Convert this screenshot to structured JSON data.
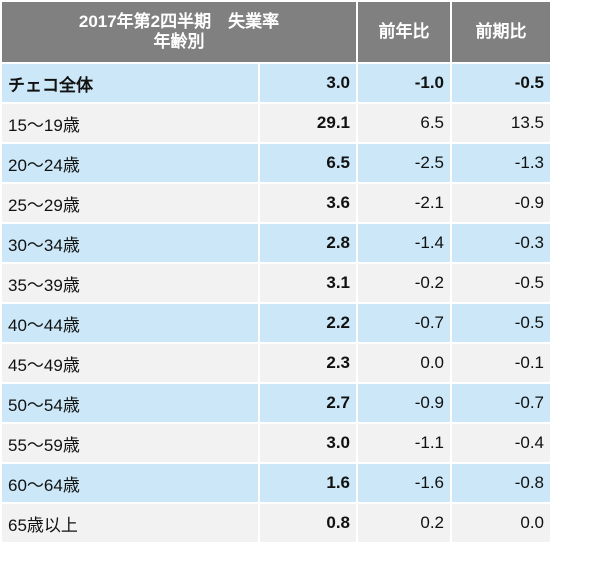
{
  "header": {
    "line1": "2017年第2四半期　失業率",
    "line2": "年齢別",
    "yoy": "前年比",
    "qoq": "前期比"
  },
  "rows": [
    {
      "age": "チェコ全体",
      "rate": "3.0",
      "yoy": "-1.0",
      "qoq": "-0.5"
    },
    {
      "age": "15～19歳",
      "rate": "29.1",
      "yoy": "6.5",
      "qoq": "13.5"
    },
    {
      "age": "20～24歳",
      "rate": "6.5",
      "yoy": "-2.5",
      "qoq": "-1.3"
    },
    {
      "age": "25～29歳",
      "rate": "3.6",
      "yoy": "-2.1",
      "qoq": "-0.9"
    },
    {
      "age": "30～34歳",
      "rate": "2.8",
      "yoy": "-1.4",
      "qoq": "-0.3"
    },
    {
      "age": "35～39歳",
      "rate": "3.1",
      "yoy": "-0.2",
      "qoq": "-0.5"
    },
    {
      "age": "40～44歳",
      "rate": "2.2",
      "yoy": "-0.7",
      "qoq": "-0.5"
    },
    {
      "age": "45～49歳",
      "rate": "2.3",
      "yoy": "0.0",
      "qoq": "-0.1"
    },
    {
      "age": "50～54歳",
      "rate": "2.7",
      "yoy": "-0.9",
      "qoq": "-0.7"
    },
    {
      "age": "55～59歳",
      "rate": "3.0",
      "yoy": "-1.1",
      "qoq": "-0.4"
    },
    {
      "age": "60～64歳",
      "rate": "1.6",
      "yoy": "-1.6",
      "qoq": "-0.8"
    },
    {
      "age": "65歳以上",
      "rate": "0.8",
      "yoy": "0.2",
      "qoq": "0.0"
    }
  ],
  "colors": {
    "header_bg": "#808080",
    "row_blue": "#cce8f8",
    "row_gray": "#f2f2f2"
  }
}
